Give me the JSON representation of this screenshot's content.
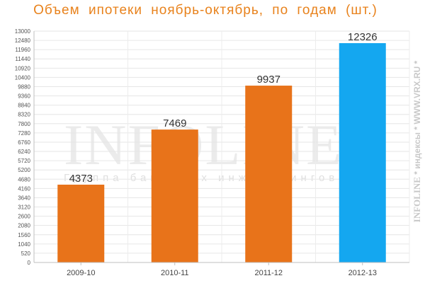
{
  "title": "Объем ипотеки ноябрь-октябрь, по годам (шт.)",
  "watermark": {
    "brand": "INFOLINE®",
    "tagline": "Группа банковых инжинирингов",
    "side_brand": "INFOLINE",
    "side_text": " * индексы * WWW.VRX.RU *"
  },
  "colors": {
    "bar_orange": "#e8731a",
    "bar_blue": "#14a7f0",
    "title": "#e8821c"
  },
  "chart_data": {
    "type": "bar",
    "title": "Объем ипотеки ноябрь-октябрь, по годам (шт.)",
    "xlabel": "",
    "ylabel": "",
    "categories": [
      "2009-10",
      "2010-11",
      "2011-12",
      "2012-13"
    ],
    "values": [
      4373,
      7469,
      9937,
      12326
    ],
    "data_labels": [
      "4373",
      "7469",
      "9937",
      "12326"
    ],
    "bar_colors": [
      "#e8731a",
      "#e8731a",
      "#e8731a",
      "#14a7f0"
    ],
    "ylim": [
      0,
      13000
    ],
    "yticks": [
      0,
      520,
      1040,
      1560,
      2080,
      2600,
      3120,
      3640,
      4160,
      4680,
      5200,
      5720,
      6240,
      6760,
      7280,
      7800,
      8320,
      8840,
      9360,
      9880,
      10400,
      10920,
      11440,
      11960,
      12480,
      13000
    ],
    "grid": true,
    "legend": "none"
  }
}
